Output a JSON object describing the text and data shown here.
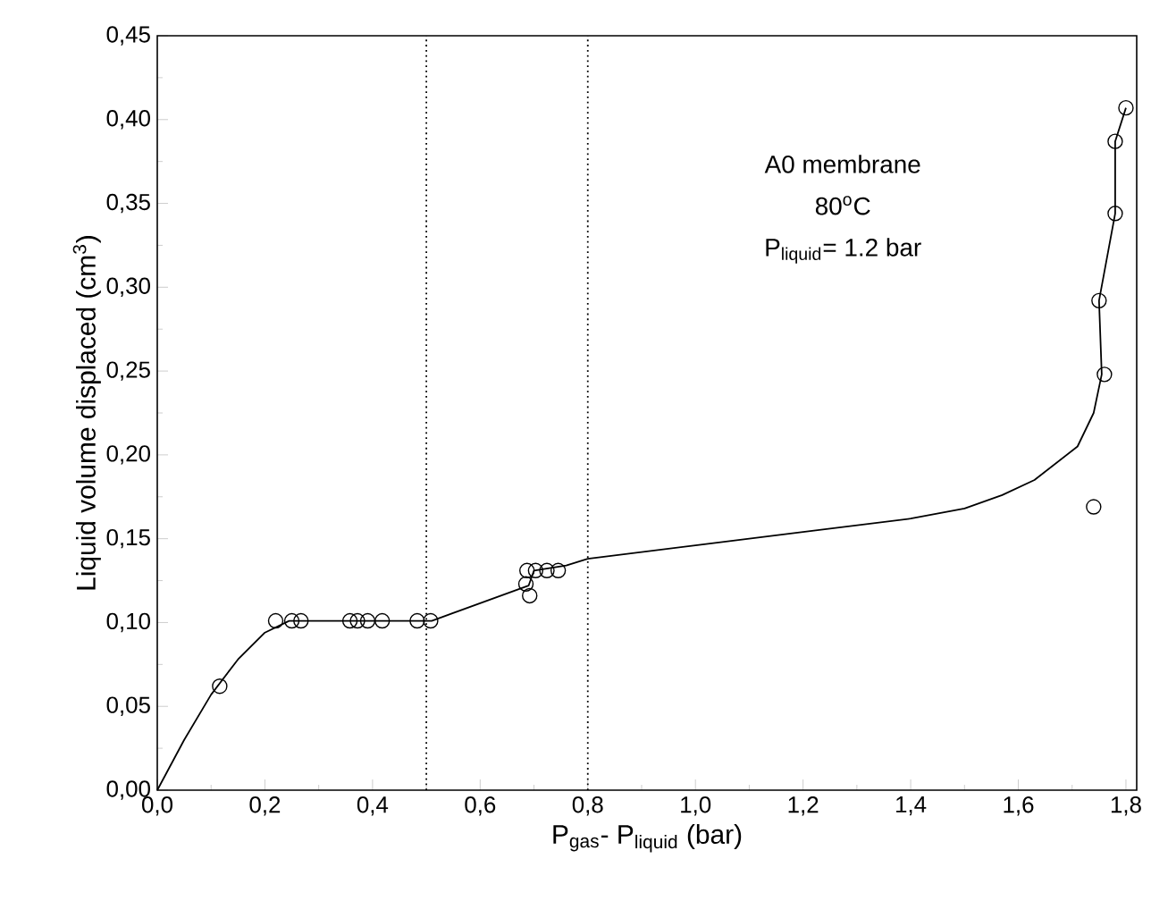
{
  "chart_data": {
    "type": "scatter",
    "xlabel": "P$_{gas}$- P$_{liquid}$ (bar)",
    "ylabel": "Liquid volume displaced (cm$^{3}$)",
    "annotations": [
      "A0 membrane",
      "80$^{o}$C",
      "P$_{liquid}$= 1.2 bar"
    ],
    "xlim": [
      0,
      1.82
    ],
    "ylim": [
      0,
      0.45
    ],
    "xticks": [
      {
        "value": 0.0,
        "label": "0,0"
      },
      {
        "value": 0.2,
        "label": "0,2"
      },
      {
        "value": 0.4,
        "label": "0,4"
      },
      {
        "value": 0.6,
        "label": "0,6"
      },
      {
        "value": 0.8,
        "label": "0,8"
      },
      {
        "value": 1.0,
        "label": "1,0"
      },
      {
        "value": 1.2,
        "label": "1,2"
      },
      {
        "value": 1.4,
        "label": "1,4"
      },
      {
        "value": 1.6,
        "label": "1,6"
      },
      {
        "value": 1.8,
        "label": "1,8"
      }
    ],
    "yticks": [
      {
        "value": 0.0,
        "label": "0,00"
      },
      {
        "value": 0.05,
        "label": "0,05"
      },
      {
        "value": 0.1,
        "label": "0,10"
      },
      {
        "value": 0.15,
        "label": "0,15"
      },
      {
        "value": 0.2,
        "label": "0,20"
      },
      {
        "value": 0.25,
        "label": "0,25"
      },
      {
        "value": 0.3,
        "label": "0,30"
      },
      {
        "value": 0.35,
        "label": "0,35"
      },
      {
        "value": 0.4,
        "label": "0,40"
      },
      {
        "value": 0.45,
        "label": "0,45"
      }
    ],
    "ref_lines": [
      {
        "axis": "x",
        "value": 0.5,
        "line_style": "dotted",
        "color": "#000000"
      },
      {
        "axis": "x",
        "value": 0.8,
        "line_style": "dotted",
        "color": "#000000"
      }
    ],
    "series": [
      {
        "type": "line",
        "marker": "none",
        "color": "#000000",
        "x": [
          0,
          0.05,
          0.1,
          0.15,
          0.2,
          0.245,
          0.51,
          0.69,
          0.7,
          0.76,
          0.8,
          1.0,
          1.2,
          1.4,
          1.5,
          1.57,
          1.63,
          1.71,
          1.74,
          1.755,
          1.75,
          1.78,
          1.78,
          1.8
        ],
        "values": [
          0,
          0.03,
          0.057,
          0.078,
          0.094,
          0.101,
          0.101,
          0.122,
          0.131,
          0.134,
          0.138,
          0.146,
          0.154,
          0.162,
          0.168,
          0.176,
          0.185,
          0.205,
          0.225,
          0.248,
          0.292,
          0.344,
          0.387,
          0.407
        ]
      },
      {
        "marker": "circle",
        "color": "#000000",
        "x": [
          0.116,
          0.22,
          0.25,
          0.267,
          0.358,
          0.372,
          0.391,
          0.418,
          0.483,
          0.508,
          0.685,
          0.692,
          0.687,
          0.703,
          0.724,
          0.745,
          1.74,
          1.76,
          1.75,
          1.78,
          1.78,
          1.8
        ],
        "values": [
          0.062,
          0.101,
          0.101,
          0.101,
          0.101,
          0.101,
          0.101,
          0.101,
          0.101,
          0.101,
          0.123,
          0.116,
          0.131,
          0.131,
          0.131,
          0.131,
          0.169,
          0.248,
          0.292,
          0.344,
          0.387,
          0.407
        ]
      }
    ]
  }
}
